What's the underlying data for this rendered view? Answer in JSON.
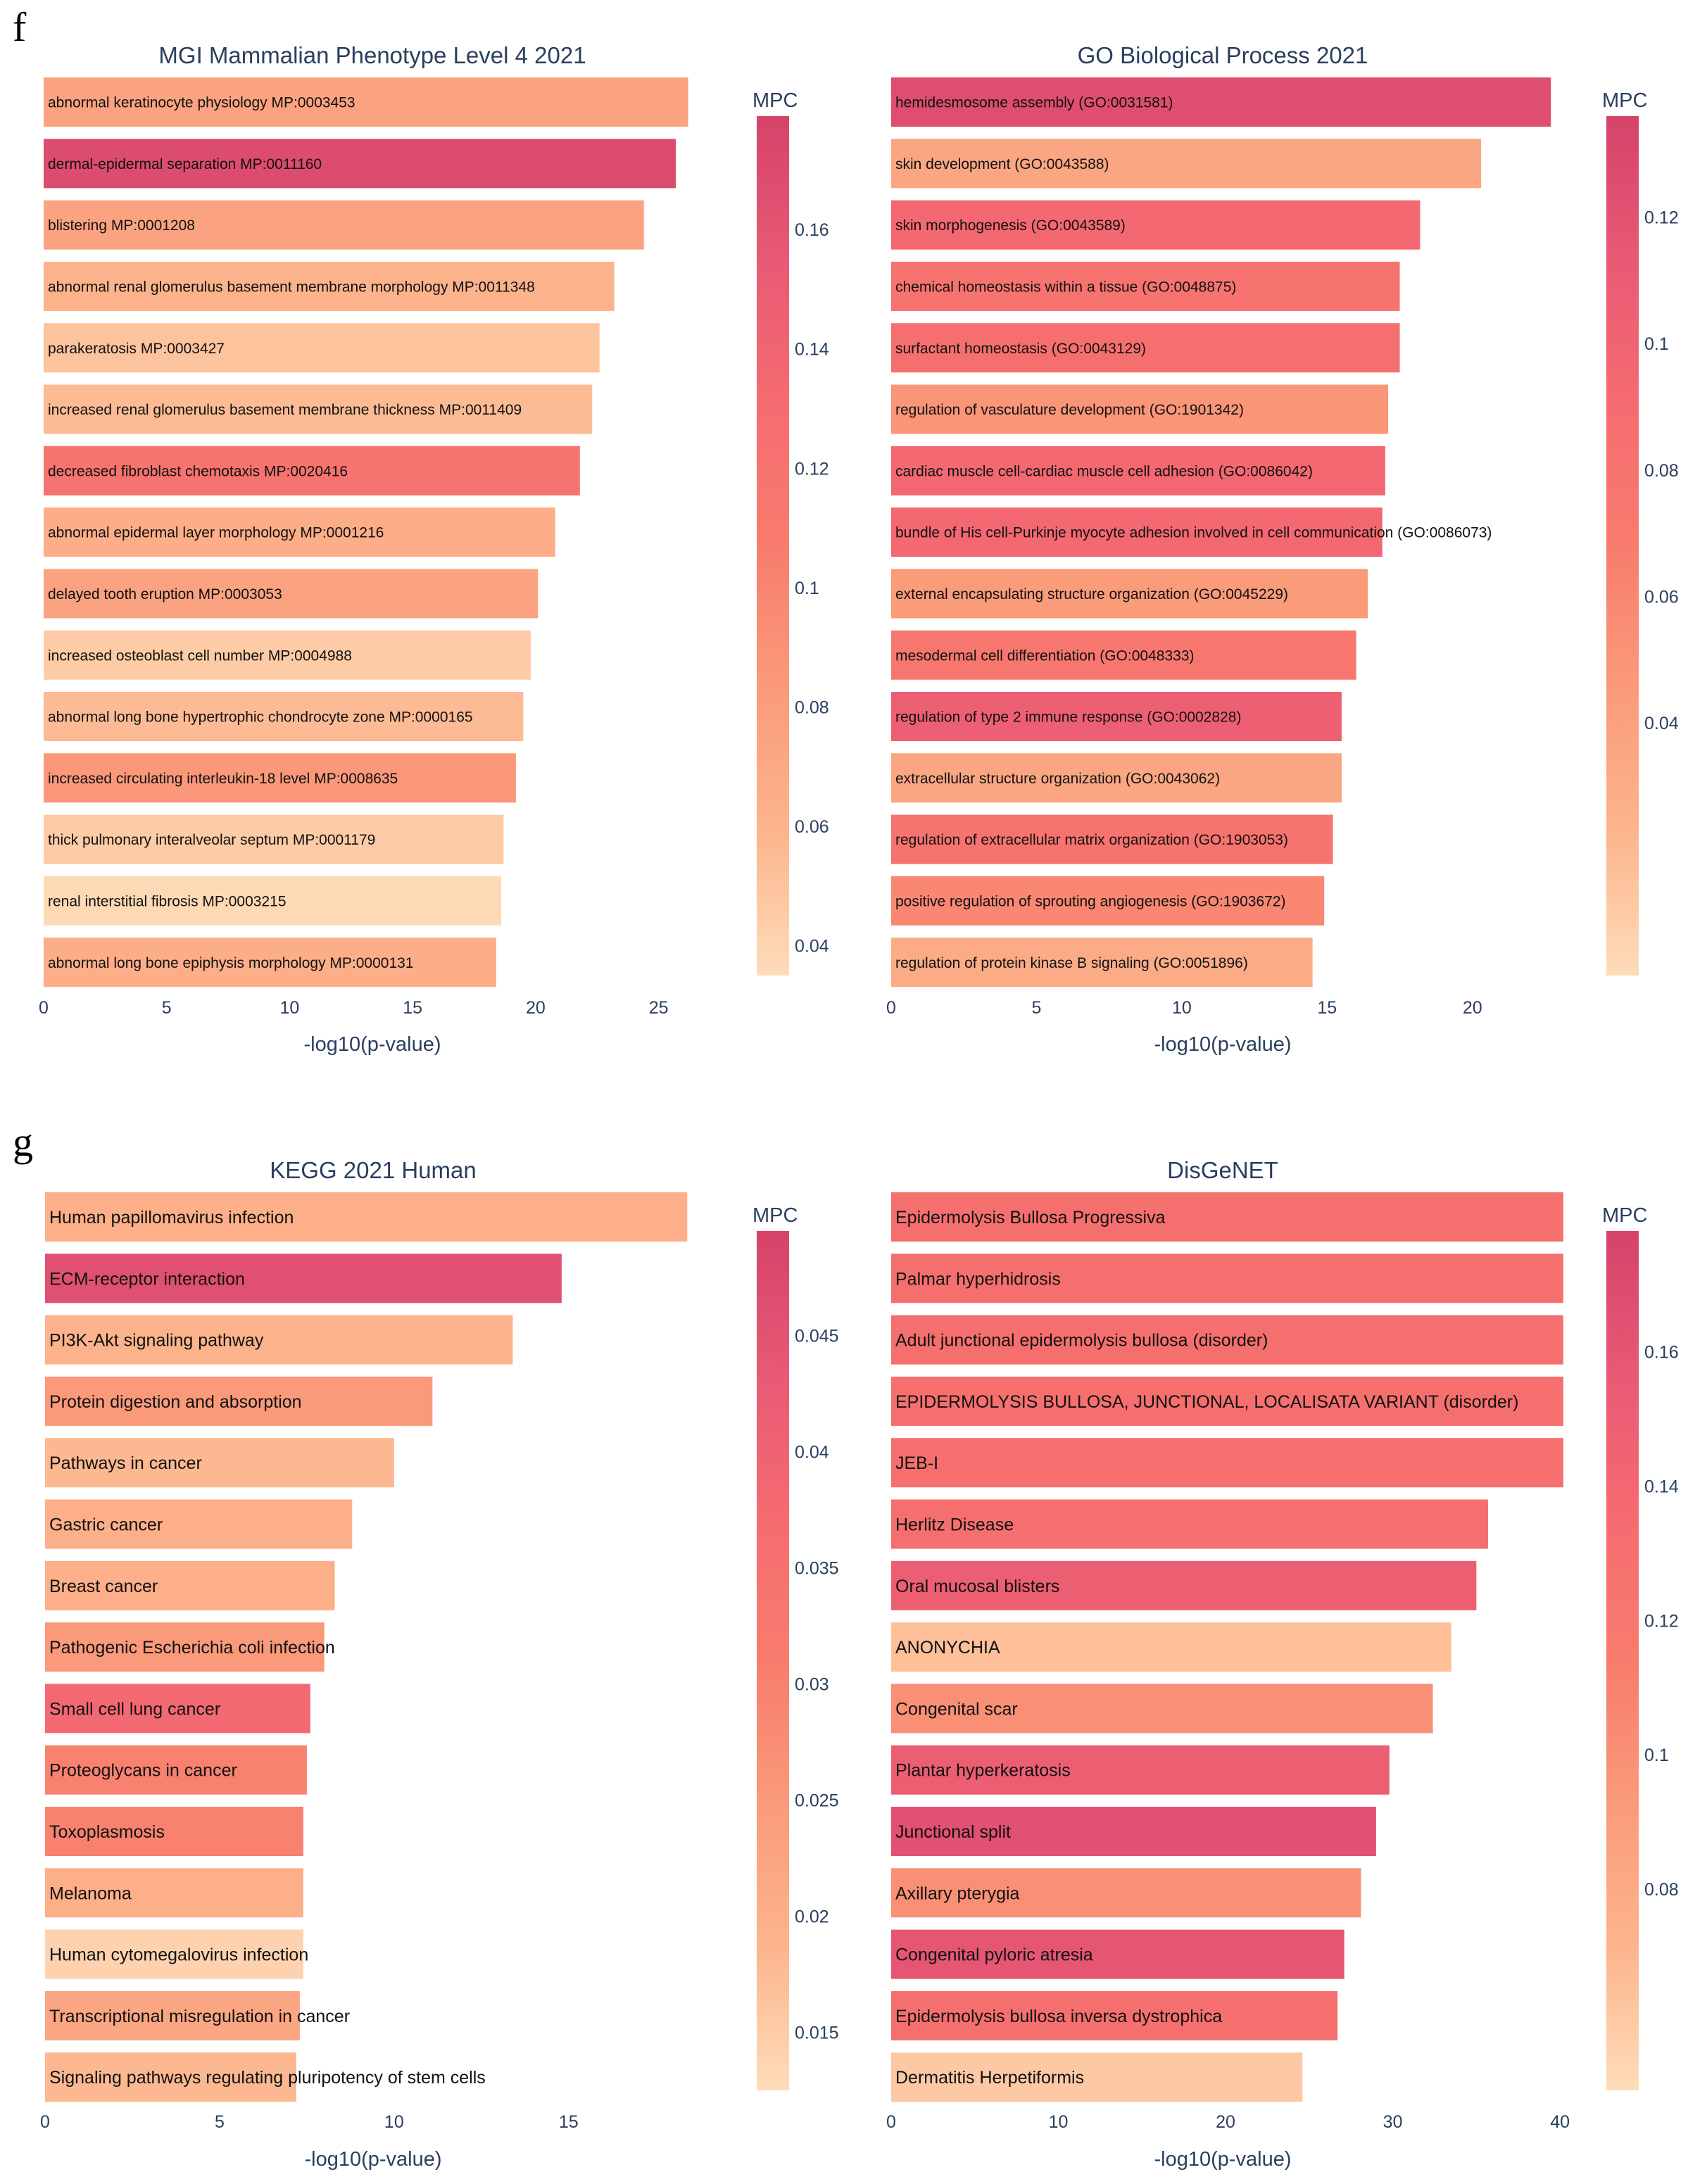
{
  "panel_labels": [
    "f",
    "g"
  ],
  "colorscale": [
    "#fedcb9",
    "#fcb48c",
    "#fa9b7a",
    "#f87c6d",
    "#f56b70",
    "#e85a75",
    "#d5436a"
  ],
  "chart_data": [
    {
      "type": "bar",
      "orientation": "horizontal",
      "title": "MGI Mammalian Phenotype Level 4 2021",
      "xlabel": "-log10(p-value)",
      "xlim": [
        0,
        27.3
      ],
      "xticks": [
        0,
        5,
        10,
        15,
        20,
        25
      ],
      "colorbar": {
        "title": "MPC",
        "range": [
          0.035,
          0.179
        ],
        "ticks": [
          0.04,
          0.06,
          0.08,
          0.1,
          0.12,
          0.14,
          0.16
        ]
      },
      "categories": [
        "abnormal keratinocyte physiology MP:0003453",
        "dermal-epidermal separation MP:0011160",
        "blistering MP:0001208",
        "abnormal renal glomerulus basement membrane morphology MP:0011348",
        "parakeratosis MP:0003427",
        "increased renal glomerulus basement membrane thickness MP:0011409",
        "decreased fibroblast chemotaxis MP:0020416",
        "abnormal epidermal layer morphology MP:0001216",
        "delayed tooth eruption MP:0003053",
        "increased osteoblast cell number MP:0004988",
        "abnormal long bone hypertrophic chondrocyte zone MP:0000165",
        "increased circulating interleukin-18 level MP:0008635",
        "thick pulmonary interalveolar septum MP:0001179",
        "renal interstitial fibrosis MP:0003215",
        "abnormal long bone epiphysis morphology MP:0000131"
      ],
      "values": [
        26.2,
        25.7,
        24.4,
        23.2,
        22.6,
        22.3,
        21.8,
        20.8,
        20.1,
        19.8,
        19.5,
        19.2,
        18.7,
        18.6,
        18.4
      ],
      "mpc": [
        0.075,
        0.17,
        0.075,
        0.06,
        0.05,
        0.055,
        0.12,
        0.065,
        0.075,
        0.045,
        0.055,
        0.085,
        0.045,
        0.037,
        0.065
      ]
    },
    {
      "type": "bar",
      "orientation": "horizontal",
      "title": "GO Biological Process 2021",
      "xlabel": "-log10(p-value)",
      "xlim": [
        0,
        23.3
      ],
      "xticks": [
        0,
        5,
        10,
        15,
        20
      ],
      "colorbar": {
        "title": "MPC",
        "range": [
          0.0,
          0.136
        ],
        "ticks": [
          0.04,
          0.06,
          0.08,
          0.1,
          0.12
        ]
      },
      "categories": [
        "hemidesmosome assembly (GO:0031581)",
        "skin development (GO:0043588)",
        "skin morphogenesis (GO:0043589)",
        "chemical homeostasis within a tissue (GO:0048875)",
        "surfactant homeostasis (GO:0043129)",
        "regulation of vasculature development (GO:1901342)",
        "cardiac muscle cell-cardiac muscle cell adhesion (GO:0086042)",
        "bundle of His cell-Purkinje myocyte adhesion involved in cell communication (GO:0086073)",
        "external encapsulating structure organization (GO:0045229)",
        "mesodermal cell differentiation (GO:0048333)",
        "regulation of type 2 immune response (GO:0002828)",
        "extracellular structure organization (GO:0043062)",
        "regulation of extracellular matrix organization (GO:1903053)",
        "positive regulation of sprouting angiogenesis (GO:1903672)",
        "regulation of protein kinase B signaling (GO:0051896)"
      ],
      "values": [
        22.7,
        20.3,
        18.2,
        17.5,
        17.5,
        17.1,
        17.0,
        16.9,
        16.4,
        16.0,
        15.5,
        15.5,
        15.2,
        14.9,
        14.5
      ],
      "mpc": [
        0.125,
        0.035,
        0.095,
        0.08,
        0.085,
        0.05,
        0.095,
        0.095,
        0.045,
        0.075,
        0.105,
        0.035,
        0.08,
        0.06,
        0.03
      ]
    },
    {
      "type": "bar",
      "orientation": "horizontal",
      "title": "KEGG 2021 Human",
      "xlabel": "-log10(p-value)",
      "xlim": [
        0,
        19.2
      ],
      "xticks": [
        0,
        5,
        10,
        15
      ],
      "colorbar": {
        "title": "MPC",
        "range": [
          0.0125,
          0.0495
        ],
        "ticks": [
          0.015,
          0.02,
          0.025,
          0.03,
          0.035,
          0.04,
          0.045
        ]
      },
      "categories": [
        "Human papillomavirus infection",
        "ECM-receptor interaction",
        "PI3K-Akt signaling pathway",
        "Protein digestion and absorption",
        "Pathways in cancer",
        "Gastric cancer",
        "Breast cancer",
        "Pathogenic Escherichia coli infection",
        "Small cell lung cancer",
        "Proteoglycans in cancer",
        "Toxoplasmosis",
        "Melanoma",
        "Human cytomegalovirus infection",
        "Transcriptional misregulation in cancer",
        "Signaling pathways regulating pluripotency of stem cells"
      ],
      "values": [
        18.4,
        14.8,
        13.4,
        11.1,
        10.0,
        8.8,
        8.3,
        8.0,
        7.6,
        7.5,
        7.4,
        7.4,
        7.4,
        7.3,
        7.2
      ],
      "mpc": [
        0.02,
        0.046,
        0.019,
        0.025,
        0.018,
        0.02,
        0.02,
        0.025,
        0.038,
        0.03,
        0.03,
        0.02,
        0.014,
        0.022,
        0.018
      ]
    },
    {
      "type": "bar",
      "orientation": "horizontal",
      "title": "DisGeNET",
      "xlabel": "-log10(p-value)",
      "xlim": [
        0,
        40.5
      ],
      "xticks": [
        0,
        10,
        20,
        30,
        40
      ],
      "colorbar": {
        "title": "MPC",
        "range": [
          0.05,
          0.178
        ],
        "ticks": [
          0.08,
          0.1,
          0.12,
          0.14,
          0.16
        ]
      },
      "categories": [
        "Epidermolysis Bullosa Progressiva",
        "Palmar hyperhidrosis",
        "Adult junctional epidermolysis bullosa (disorder)",
        "EPIDERMOLYSIS BULLOSA, JUNCTIONAL, LOCALISATA VARIANT (disorder)",
        "JEB-I",
        "Herlitz Disease",
        "Oral mucosal blisters",
        "ANONYCHIA",
        "Congenital scar",
        "Plantar hyperkeratosis",
        "Junctional split",
        "Axillary pterygia",
        "Congenital pyloric atresia",
        "Epidermolysis bullosa inversa dystrophica",
        "Dermatitis Herpetiformis"
      ],
      "values": [
        40.2,
        40.2,
        40.2,
        40.2,
        40.2,
        35.7,
        35.0,
        33.5,
        32.4,
        29.8,
        29.0,
        28.1,
        27.1,
        26.7,
        24.6
      ],
      "mpc": [
        0.13,
        0.13,
        0.13,
        0.13,
        0.13,
        0.13,
        0.15,
        0.065,
        0.1,
        0.15,
        0.165,
        0.1,
        0.16,
        0.13,
        0.06
      ]
    }
  ]
}
